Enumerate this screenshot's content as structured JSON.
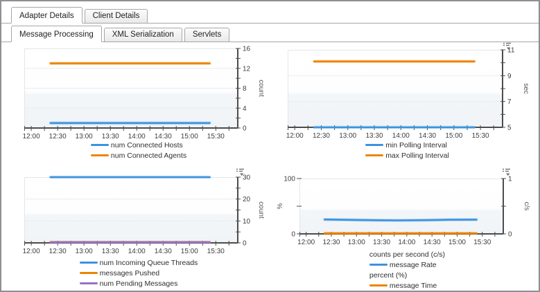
{
  "tabs": {
    "row1": [
      {
        "label": "Adapter Details",
        "active": true
      },
      {
        "label": "Client Details",
        "active": false
      }
    ],
    "row2": [
      {
        "label": "Message Processing",
        "active": true
      },
      {
        "label": "XML Serialization",
        "active": false
      },
      {
        "label": "Servlets",
        "active": false
      }
    ]
  },
  "colors": {
    "blue": "#3b92e0",
    "orange": "#ee8300",
    "purple": "#9472c8",
    "axis": "#4c4c4c"
  },
  "icons": {
    "chart_menu": "chart-menu-icon"
  },
  "chart_data": [
    {
      "id": "c1",
      "type": "line",
      "menu_icon": false,
      "x": {
        "axis_start_min": -8,
        "axis_end_min": 235,
        "start_min": 0,
        "end_min": 225,
        "tick_step_min": 15,
        "label_step_min": 30,
        "labels": [
          "12:00",
          "12:30",
          "13:00",
          "13:30",
          "14:00",
          "14:30",
          "15:00",
          "15:30"
        ]
      },
      "y_right": {
        "title": "count",
        "min": 0,
        "max": 16,
        "tick_step": 2,
        "label_step": 4,
        "tick_labels": [
          "0",
          "4",
          "8",
          "12",
          "16"
        ]
      },
      "series": [
        {
          "label": "num Connected Hosts",
          "color": "#3b92e0",
          "axis": "right",
          "points": [
            [
              22,
              1
            ],
            [
              203,
              1
            ]
          ]
        },
        {
          "label": "num Connected Agents",
          "color": "#ee8300",
          "axis": "right",
          "points": [
            [
              22,
              13
            ],
            [
              203,
              13
            ]
          ]
        }
      ],
      "legend": [
        {
          "swatch": "#3b92e0",
          "label": "num Connected Hosts"
        },
        {
          "swatch": "#ee8300",
          "label": "num Connected Agents"
        }
      ]
    },
    {
      "id": "c2",
      "type": "line",
      "menu_icon": true,
      "x": {
        "axis_start_min": -8,
        "axis_end_min": 235,
        "start_min": 0,
        "end_min": 225,
        "tick_step_min": 15,
        "label_step_min": 30,
        "labels": [
          "12:00",
          "12:30",
          "13:00",
          "13:30",
          "14:00",
          "14:30",
          "15:00",
          "15:30"
        ]
      },
      "y_right": {
        "title": "sec",
        "min": 5,
        "max": 11,
        "tick_step": 1,
        "label_step": 2,
        "tick_labels": [
          "5",
          "7",
          "9",
          "11"
        ]
      },
      "series": [
        {
          "label": "min Polling Interval",
          "color": "#3b92e0",
          "axis": "right",
          "points": [
            [
              22,
              5
            ],
            [
              203,
              5
            ]
          ]
        },
        {
          "label": "max Polling Interval",
          "color": "#ee8300",
          "axis": "right",
          "points": [
            [
              22,
              10.1
            ],
            [
              203,
              10.1
            ]
          ]
        }
      ],
      "legend": [
        {
          "swatch": "#3b92e0",
          "label": "min Polling Interval"
        },
        {
          "swatch": "#ee8300",
          "label": "max Polling Interval"
        }
      ]
    },
    {
      "id": "c3",
      "type": "line",
      "menu_icon": true,
      "x": {
        "axis_start_min": -8,
        "axis_end_min": 235,
        "start_min": 0,
        "end_min": 225,
        "tick_step_min": 15,
        "label_step_min": 30,
        "labels": [
          "12:00",
          "12:30",
          "13:00",
          "13:30",
          "14:00",
          "14:30",
          "15:00",
          "15:30"
        ]
      },
      "y_right": {
        "title": "count",
        "min": 0,
        "max": 30,
        "tick_step": 5,
        "label_step": 10,
        "tick_labels": [
          "0",
          "10",
          "20",
          "30"
        ]
      },
      "series": [
        {
          "label": "num Incoming Queue Threads",
          "color": "#3b92e0",
          "axis": "right",
          "points": [
            [
              22,
              30
            ],
            [
              203,
              30
            ]
          ]
        },
        {
          "label": "messages Pushed",
          "color": "#ee8300",
          "axis": "right",
          "points": [
            [
              22,
              0.25
            ],
            [
              203,
              0.25
            ]
          ]
        },
        {
          "label": "num Pending Messages",
          "color": "#9472c8",
          "axis": "right",
          "points": [
            [
              22,
              0.25
            ],
            [
              203,
              0.25
            ]
          ]
        }
      ],
      "legend": [
        {
          "swatch": "#3b92e0",
          "label": "num Incoming Queue Threads"
        },
        {
          "swatch": "#ee8300",
          "label": "messages Pushed"
        },
        {
          "swatch": "#9472c8",
          "label": "num Pending Messages"
        }
      ]
    },
    {
      "id": "c4",
      "type": "line",
      "menu_icon": true,
      "x": {
        "axis_start_min": -8,
        "axis_end_min": 235,
        "start_min": 0,
        "end_min": 225,
        "tick_step_min": 15,
        "label_step_min": 30,
        "labels": [
          "12:00",
          "12:30",
          "13:00",
          "13:30",
          "14:00",
          "14:30",
          "15:00",
          "15:30"
        ]
      },
      "y_right": {
        "title": "c/s",
        "min": 0,
        "max": 1,
        "tick_step": 0.5,
        "label_step": 1,
        "tick_labels": [
          "0",
          "1"
        ]
      },
      "y_left": {
        "title": "%",
        "min": 0,
        "max": 100,
        "tick_step": 50,
        "label_step": 100,
        "tick_labels": [
          "0",
          "100"
        ]
      },
      "series": [
        {
          "label": "message Rate",
          "color": "#3b92e0",
          "axis": "right",
          "points": [
            [
              22,
              0.26
            ],
            [
              55,
              0.252
            ],
            [
              85,
              0.246
            ],
            [
              110,
              0.244
            ],
            [
              140,
              0.248
            ],
            [
              170,
              0.255
            ],
            [
              203,
              0.258
            ]
          ]
        },
        {
          "label": "message Time",
          "color": "#ee8300",
          "axis": "left",
          "points": [
            [
              22,
              1
            ],
            [
              203,
              1
            ]
          ]
        }
      ],
      "legend": [
        {
          "header": "counts per second (c/s)"
        },
        {
          "swatch": "#3b92e0",
          "label": "message Rate"
        },
        {
          "header": "percent (%)"
        },
        {
          "swatch": "#ee8300",
          "label": "message Time"
        }
      ]
    }
  ]
}
